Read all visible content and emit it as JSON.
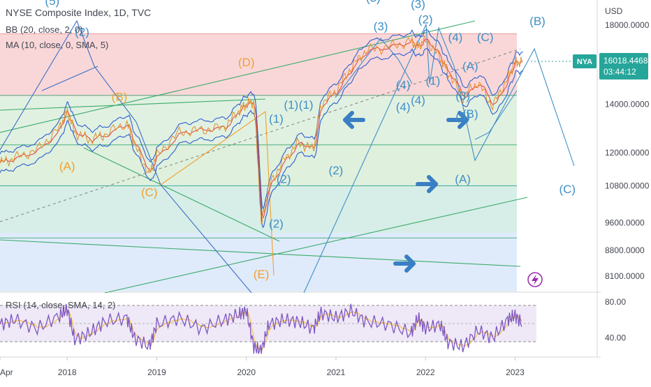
{
  "header": {
    "title": "NYSE Composite Index, 1D, TVC",
    "bb_label": "BB (20, close, 2, 0)",
    "ma_label": "MA (10, close, 0, SMA, 5)",
    "rsi_label": "RSI (14, close, SMA, 14, 2)"
  },
  "price_scale": {
    "currency": "USD",
    "ticks": [
      "18000.0000",
      "14000.0000",
      "12000.0000",
      "10800.0000",
      "9600.0000",
      "8800.0000",
      "8100.0000"
    ]
  },
  "rsi_scale": {
    "ticks": [
      "80.00",
      "40.00"
    ]
  },
  "time_axis": {
    "labels": [
      "Apr",
      "2018",
      "2019",
      "2020",
      "2021",
      "2022",
      "2023"
    ]
  },
  "current_price": {
    "symbol": "NYA",
    "value": "16018.4468",
    "countdown": "03:44:12"
  },
  "colors": {
    "orange_waves": "#f0a030",
    "blue_waves": "#3d8fc8",
    "arrow_blue": "#3a7ec3",
    "bollinger": "#2e5fcf",
    "ma": "#e04040",
    "price": "#e09030",
    "rsi_line": "#7e57c2",
    "rsi_signal": "#f5c042",
    "price_badge": "#26a69a"
  },
  "chart_data": {
    "type": "line",
    "title": "NYSE Composite Index, 1D, TVC",
    "x_range": [
      "2017-04",
      "2023-12"
    ],
    "y_scale": "log",
    "y_range": [
      7700,
      19500
    ],
    "x": [
      "2017-04",
      "2017-06",
      "2017-09",
      "2017-12",
      "2018-01",
      "2018-02",
      "2018-04",
      "2018-06",
      "2018-09",
      "2018-10",
      "2018-12",
      "2019-01",
      "2019-04",
      "2019-07",
      "2019-10",
      "2019-12",
      "2020-01",
      "2020-02",
      "2020-03",
      "2020-04",
      "2020-06",
      "2020-08",
      "2020-10",
      "2020-11",
      "2021-01",
      "2021-03",
      "2021-05",
      "2021-08",
      "2021-11",
      "2021-12",
      "2022-01",
      "2022-03",
      "2022-04",
      "2022-06",
      "2022-08",
      "2022-10",
      "2022-12",
      "2023-01",
      "2023-02"
    ],
    "series": [
      {
        "values": [
          11600,
          11800,
          12100,
          13000,
          13700,
          12800,
          12500,
          12700,
          13200,
          12300,
          11200,
          11900,
          12800,
          12900,
          13000,
          13700,
          14000,
          14100,
          9500,
          10800,
          11700,
          12400,
          12100,
          14000,
          14600,
          15700,
          16600,
          16800,
          17100,
          16800,
          17200,
          16200,
          15500,
          14300,
          15000,
          13900,
          15200,
          16000,
          16018
        ]
      }
    ],
    "last_value": 16018.4468,
    "wave_labels": {
      "orange": [
        "(A)",
        "(B)",
        "(C)",
        "(D)",
        "(E)"
      ],
      "blue": [
        "(1)",
        "(2)",
        "(3)",
        "(4)",
        "(5)",
        "(A)",
        "(B)",
        "(C)"
      ]
    },
    "horizontal_levels": [
      17500,
      14400,
      12300,
      10800,
      9150
    ],
    "rsi": {
      "levels": [
        30,
        50,
        70
      ],
      "y_range": [
        20,
        90
      ],
      "values": [
        55,
        60,
        50,
        65,
        72,
        38,
        45,
        58,
        62,
        40,
        30,
        55,
        62,
        50,
        60,
        66,
        70,
        30,
        25,
        55,
        60,
        58,
        50,
        68,
        62,
        70,
        58,
        55,
        45,
        62,
        50,
        55,
        35,
        30,
        48,
        40,
        60,
        65,
        55
      ]
    }
  }
}
